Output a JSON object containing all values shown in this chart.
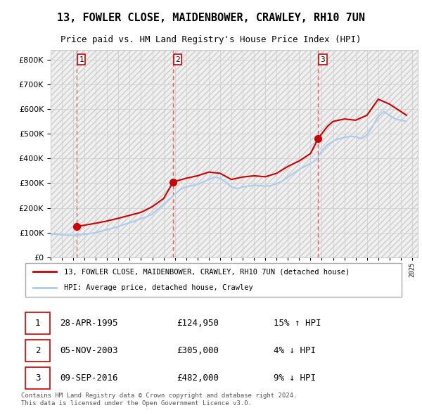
{
  "title": "13, FOWLER CLOSE, MAIDENBOWER, CRAWLEY, RH10 7UN",
  "subtitle": "Price paid vs. HM Land Registry's House Price Index (HPI)",
  "legend_line1": "13, FOWLER CLOSE, MAIDENBOWER, CRAWLEY, RH10 7UN (detached house)",
  "legend_line2": "HPI: Average price, detached house, Crawley",
  "footer": "Contains HM Land Registry data © Crown copyright and database right 2024.\nThis data is licensed under the Open Government Licence v3.0.",
  "sale_color": "#cc0000",
  "hpi_color": "#aaccee",
  "vline_color": "#dd4444",
  "marker_color": "#cc0000",
  "hatch_color": "#dddddd",
  "bg_color": "#ffffff",
  "grid_color": "#cccccc",
  "ylim": [
    0,
    840000
  ],
  "yticks": [
    0,
    100000,
    200000,
    300000,
    400000,
    500000,
    600000,
    700000,
    800000
  ],
  "xlim_start": 1993.0,
  "xlim_end": 2025.5,
  "sales": [
    {
      "year": 1995.32,
      "price": 124950,
      "label": "1",
      "hpi_rel": "15% ↑ HPI",
      "date": "28-APR-1995"
    },
    {
      "year": 2003.84,
      "price": 305000,
      "label": "2",
      "hpi_rel": "4% ↓ HPI",
      "date": "05-NOV-2003"
    },
    {
      "year": 2016.69,
      "price": 482000,
      "label": "3",
      "hpi_rel": "9% ↓ HPI",
      "date": "09-SEP-2016"
    }
  ],
  "hpi_data": {
    "years": [
      1993.0,
      1993.5,
      1994.0,
      1994.5,
      1995.0,
      1995.5,
      1996.0,
      1996.5,
      1997.0,
      1997.5,
      1998.0,
      1998.5,
      1999.0,
      1999.5,
      2000.0,
      2000.5,
      2001.0,
      2001.5,
      2002.0,
      2002.5,
      2003.0,
      2003.5,
      2004.0,
      2004.5,
      2005.0,
      2005.5,
      2006.0,
      2006.5,
      2007.0,
      2007.5,
      2008.0,
      2008.5,
      2009.0,
      2009.5,
      2010.0,
      2010.5,
      2011.0,
      2011.5,
      2012.0,
      2012.5,
      2013.0,
      2013.5,
      2014.0,
      2014.5,
      2015.0,
      2015.5,
      2016.0,
      2016.5,
      2017.0,
      2017.5,
      2018.0,
      2018.5,
      2019.0,
      2019.5,
      2020.0,
      2020.5,
      2021.0,
      2021.5,
      2022.0,
      2022.5,
      2023.0,
      2023.5,
      2024.0,
      2024.5
    ],
    "values": [
      95000,
      93000,
      91000,
      90000,
      89000,
      91000,
      93000,
      96000,
      100000,
      106000,
      112000,
      118000,
      125000,
      133000,
      140000,
      148000,
      156000,
      164000,
      175000,
      195000,
      215000,
      235000,
      255000,
      275000,
      285000,
      290000,
      295000,
      305000,
      315000,
      325000,
      320000,
      305000,
      285000,
      278000,
      285000,
      288000,
      292000,
      290000,
      288000,
      290000,
      298000,
      308000,
      325000,
      340000,
      355000,
      368000,
      380000,
      395000,
      430000,
      455000,
      470000,
      480000,
      485000,
      490000,
      488000,
      480000,
      495000,
      530000,
      570000,
      590000,
      575000,
      560000,
      555000,
      550000
    ]
  },
  "sold_line_data": {
    "years": [
      1995.32,
      1996.0,
      1997.0,
      1998.0,
      1999.0,
      2000.0,
      2001.0,
      2002.0,
      2003.0,
      2003.84,
      2003.84,
      2005.0,
      2006.0,
      2007.0,
      2008.0,
      2009.0,
      2010.0,
      2011.0,
      2012.0,
      2013.0,
      2014.0,
      2015.0,
      2016.0,
      2016.69,
      2016.69,
      2017.5,
      2018.0,
      2019.0,
      2020.0,
      2021.0,
      2022.0,
      2023.0,
      2024.0,
      2024.5
    ],
    "values": [
      124950,
      130000,
      138000,
      147000,
      158000,
      170000,
      182000,
      205000,
      238000,
      305000,
      305000,
      320000,
      330000,
      345000,
      340000,
      315000,
      325000,
      330000,
      326000,
      340000,
      368000,
      390000,
      420000,
      482000,
      482000,
      530000,
      550000,
      560000,
      555000,
      575000,
      640000,
      620000,
      590000,
      575000
    ]
  }
}
